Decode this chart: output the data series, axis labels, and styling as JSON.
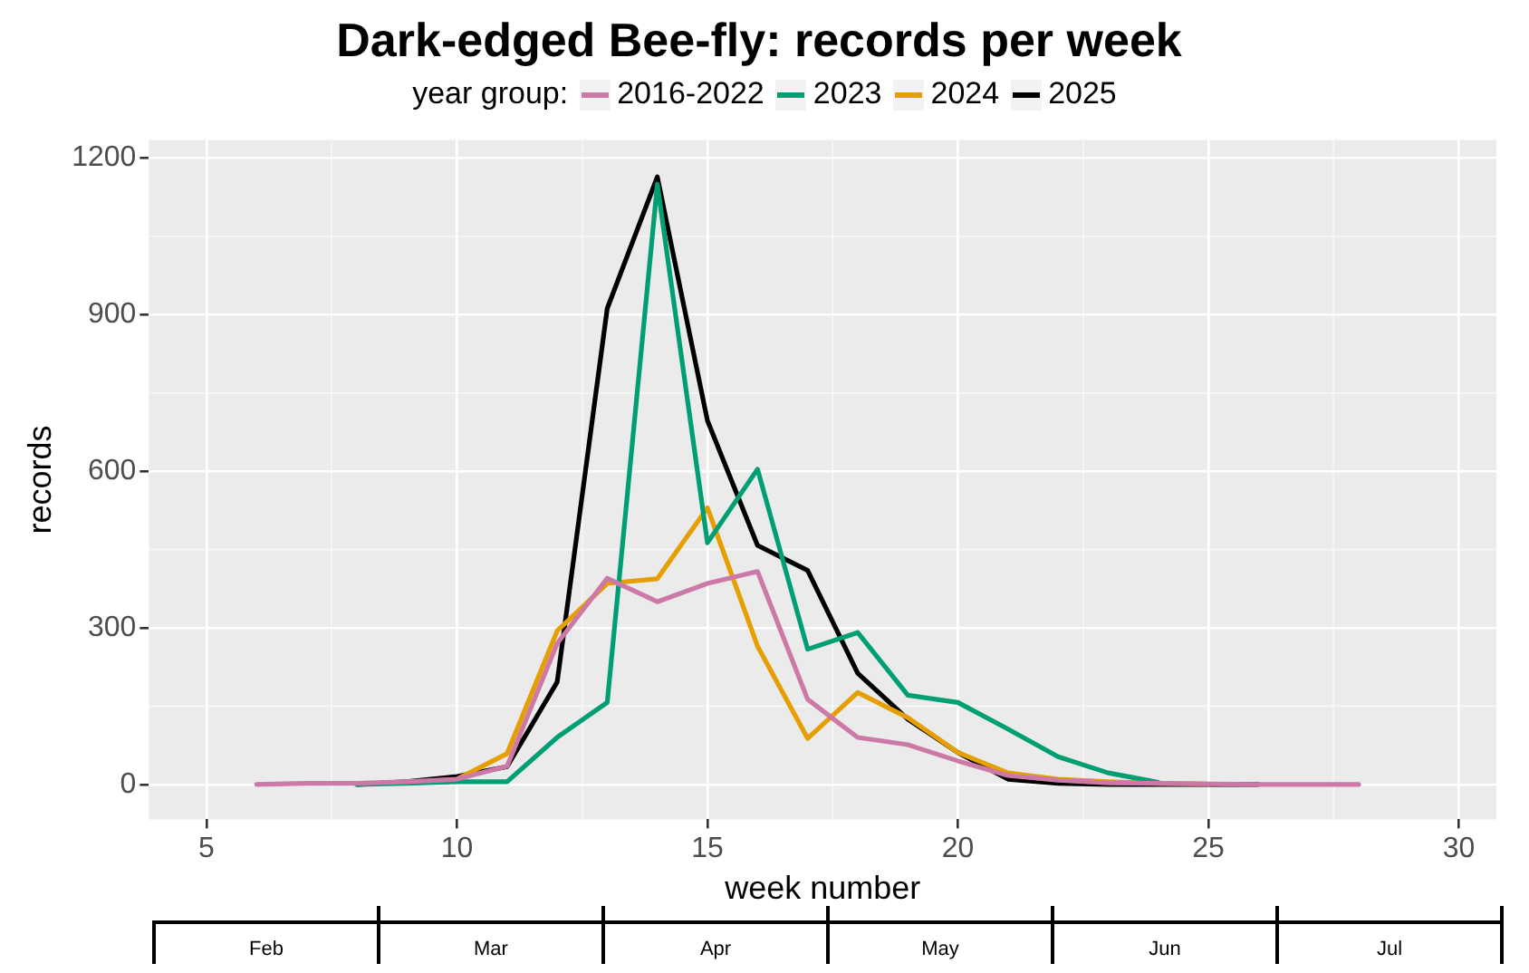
{
  "chart_data": {
    "type": "line",
    "title": "Dark-edged Bee-fly: records per week",
    "xlabel": "week number",
    "ylabel": "records",
    "legend_title": "year group:",
    "legend": "top",
    "grid": true,
    "marker": "none",
    "line_style": "solid",
    "xlim": [
      3.85,
      30.75
    ],
    "xticks": [
      5,
      10,
      15,
      20,
      25,
      30
    ],
    "ylim": [
      -67,
      1235
    ],
    "yticks": [
      0,
      300,
      600,
      900,
      1200
    ],
    "annotations": [
      "Feb",
      "Mar",
      "Apr",
      "May",
      "Jun",
      "Jul"
    ],
    "series": [
      {
        "name": "2016-2022",
        "color": "#cc79a7",
        "x": [
          6,
          7,
          8,
          9,
          10,
          11,
          12,
          13,
          14,
          15,
          16,
          17,
          18,
          19,
          20,
          21,
          22,
          23,
          24,
          25,
          26,
          27,
          28
        ],
        "values": [
          0,
          2,
          2,
          5,
          10,
          35,
          270,
          395,
          350,
          385,
          408,
          163,
          90,
          76,
          45,
          17,
          8,
          3,
          2,
          1,
          0,
          0,
          0
        ]
      },
      {
        "name": "2023",
        "color": "#009e73",
        "x": [
          8,
          9,
          10,
          11,
          12,
          13,
          14,
          15,
          16,
          17,
          18,
          19,
          20,
          21,
          22,
          23,
          24
        ],
        "values": [
          0,
          2,
          5,
          5,
          90,
          157,
          1150,
          463,
          604,
          259,
          291,
          171,
          157,
          106,
          53,
          22,
          4
        ]
      },
      {
        "name": "2024",
        "color": "#e69f00",
        "x": [
          10,
          11,
          12,
          13,
          14,
          15,
          16,
          17,
          18,
          19,
          20,
          21,
          22,
          23,
          24,
          25
        ],
        "values": [
          10,
          59,
          294,
          385,
          394,
          530,
          265,
          88,
          176,
          128,
          61,
          22,
          10,
          5,
          2,
          1
        ]
      },
      {
        "name": "2025",
        "color": "#000000",
        "x": [
          8,
          9,
          10,
          11,
          12,
          13,
          14,
          15,
          16,
          17,
          18,
          19,
          20,
          21,
          22,
          23,
          24,
          25,
          26
        ],
        "values": [
          0,
          5,
          15,
          34,
          196,
          912,
          1164,
          697,
          458,
          410,
          213,
          125,
          61,
          10,
          2,
          0,
          0,
          0,
          0
        ]
      }
    ]
  }
}
